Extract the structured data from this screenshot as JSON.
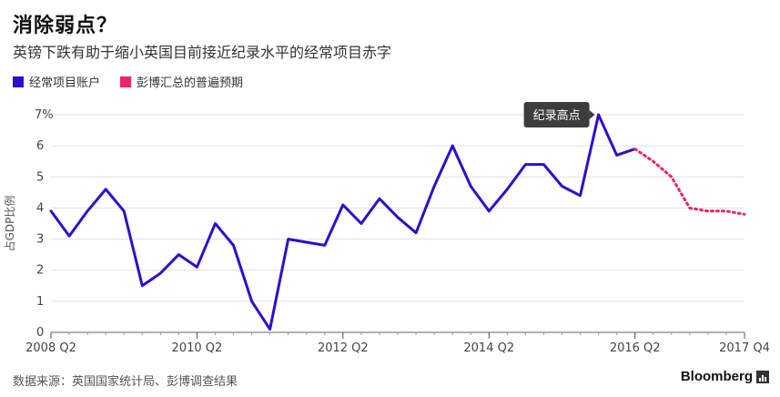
{
  "header": {
    "title": "消除弱点？",
    "subtitle": "英镑下跌有助于缩小英国目前接近纪录水平的经常项目赤字"
  },
  "legend": {
    "items": [
      {
        "label": "经常项目账户",
        "color": "#2b0fd0"
      },
      {
        "label": "彭博汇总的普遍预期",
        "color": "#f0226a"
      }
    ]
  },
  "footer": {
    "source": "数据来源：英国国家统计局、彭博调查结果",
    "brand": "Bloomberg"
  },
  "chart_data": {
    "type": "line",
    "ylabel": "占GDP比例",
    "ylim": [
      0,
      7
    ],
    "yticks": [
      "0",
      "1",
      "2",
      "3",
      "4",
      "5",
      "6",
      "7%"
    ],
    "xticks": [
      "2008 Q2",
      "2010 Q2",
      "2012 Q2",
      "2014 Q2",
      "2016 Q2",
      "2017 Q4"
    ],
    "grid": true,
    "annotation": {
      "label": "纪录高点",
      "x": "2015 Q4",
      "y": 7.0
    },
    "series": [
      {
        "name": "经常项目账户",
        "color": "#2b0fd0",
        "style": "solid",
        "x": [
          "2008 Q2",
          "2008 Q3",
          "2008 Q4",
          "2009 Q1",
          "2009 Q2",
          "2009 Q3",
          "2009 Q4",
          "2010 Q1",
          "2010 Q2",
          "2010 Q3",
          "2010 Q4",
          "2011 Q1",
          "2011 Q2",
          "2011 Q3",
          "2011 Q4",
          "2012 Q1",
          "2012 Q2",
          "2012 Q3",
          "2012 Q4",
          "2013 Q1",
          "2013 Q2",
          "2013 Q3",
          "2013 Q4",
          "2014 Q1",
          "2014 Q2",
          "2014 Q3",
          "2014 Q4",
          "2015 Q1",
          "2015 Q2",
          "2015 Q3",
          "2015 Q4",
          "2016 Q1",
          "2016 Q2"
        ],
        "values": [
          3.9,
          3.1,
          3.9,
          4.6,
          3.9,
          1.5,
          1.9,
          2.5,
          2.1,
          3.5,
          2.8,
          1.0,
          0.1,
          3.0,
          2.9,
          2.8,
          4.1,
          3.5,
          4.3,
          3.7,
          3.2,
          4.7,
          6.0,
          4.7,
          3.9,
          4.6,
          5.4,
          5.4,
          4.7,
          4.4,
          7.0,
          5.7,
          5.9
        ]
      },
      {
        "name": "彭博汇总的普遍预期",
        "color": "#f0226a",
        "style": "dotted",
        "x": [
          "2016 Q2",
          "2016 Q3",
          "2016 Q4",
          "2017 Q1",
          "2017 Q2",
          "2017 Q3",
          "2017 Q4"
        ],
        "values": [
          5.9,
          5.5,
          5.0,
          4.0,
          3.9,
          3.9,
          3.8
        ]
      }
    ]
  }
}
